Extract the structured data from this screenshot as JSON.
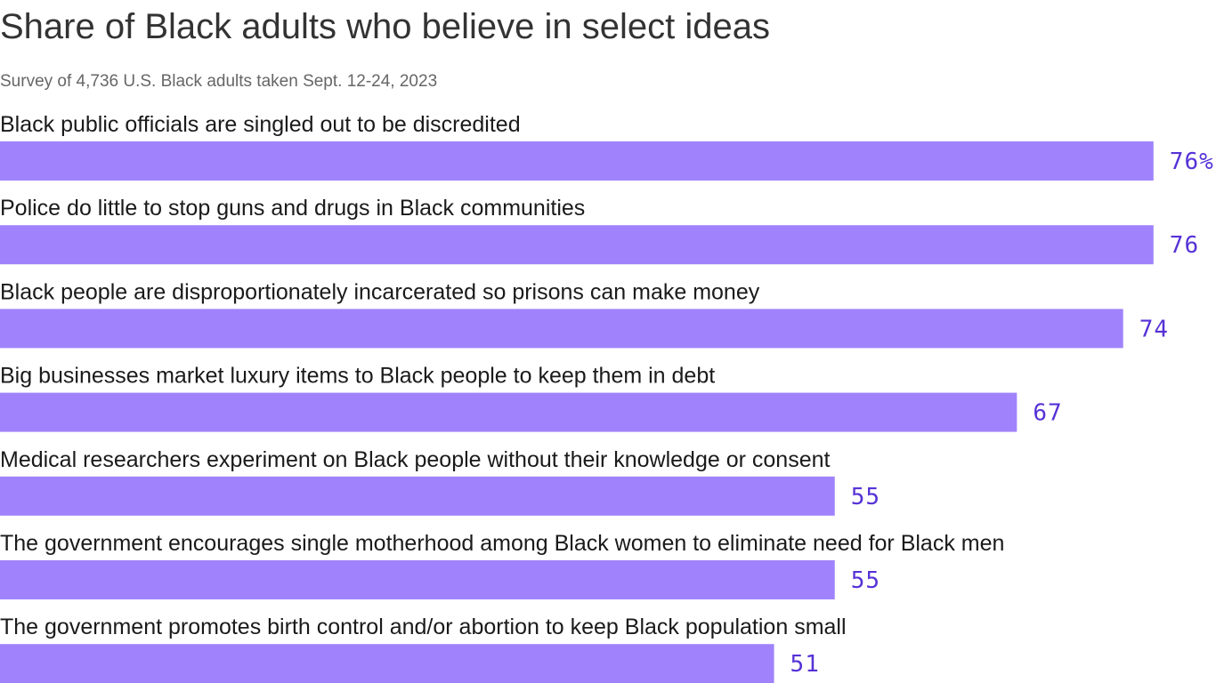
{
  "chart_data": {
    "type": "bar",
    "orientation": "horizontal",
    "title": "Share of Black adults who believe in select ideas",
    "subtitle": "Survey of 4,736 U.S. Black adults taken Sept. 12-24, 2023",
    "categories": [
      "Black public officials are singled out to be discredited",
      "Police do little to stop guns and drugs in Black communities",
      "Black people are disproportionately incarcerated so prisons can make money",
      "Big businesses market luxury items to Black people to keep them in debt",
      "Medical researchers experiment on Black people without their knowledge or consent",
      "The government encourages single motherhood among Black women to eliminate need for Black men",
      "The government promotes birth control and/or abortion to keep Black population small"
    ],
    "values": [
      76,
      76,
      74,
      67,
      55,
      55,
      51
    ],
    "value_labels": [
      "76%",
      "76",
      "74",
      "67",
      "55",
      "55",
      "51"
    ],
    "color": "#a083fc",
    "label_color": "#5632d6"
  }
}
